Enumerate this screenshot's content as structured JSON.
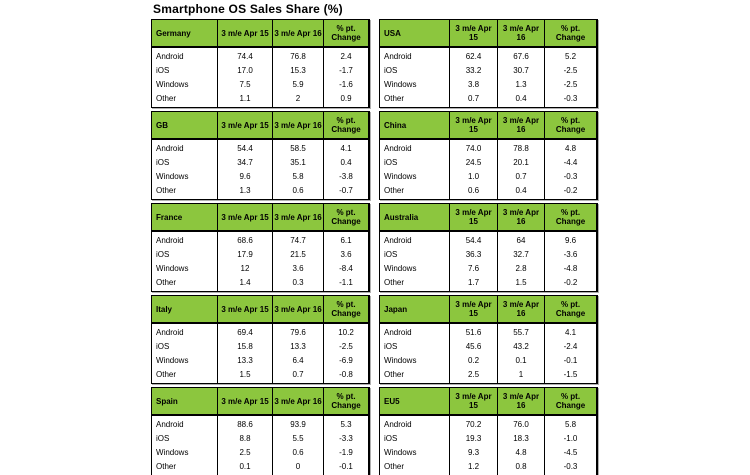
{
  "title": "Smartphone OS Sales Share (%)",
  "colors": {
    "header_green": "#8CC63E",
    "border": "#000000",
    "background": "#ffffff"
  },
  "column_headers": {
    "left": [
      "3 m/e Apr 15",
      "3 m/e Apr 16",
      "% pt.\nChange"
    ],
    "right": [
      "3 m/e Apr\n15",
      "3 m/e Apr\n16",
      "% pt.\nChange"
    ]
  },
  "chart_data": {
    "type": "table",
    "title": "Smartphone OS Sales Share (%)",
    "os_rows": [
      "Android",
      "iOS",
      "Windows",
      "Other"
    ],
    "column_labels": [
      "3 m/e Apr 15",
      "3 m/e Apr 16",
      "% pt. Change"
    ],
    "tables": {
      "left": [
        {
          "country": "Germany",
          "values": [
            [
              "74.4",
              "76.8",
              "2.4"
            ],
            [
              "17.0",
              "15.3",
              "-1.7"
            ],
            [
              "7.5",
              "5.9",
              "-1.6"
            ],
            [
              "1.1",
              "2",
              "0.9"
            ]
          ]
        },
        {
          "country": "GB",
          "values": [
            [
              "54.4",
              "58.5",
              "4.1"
            ],
            [
              "34.7",
              "35.1",
              "0.4"
            ],
            [
              "9.6",
              "5.8",
              "-3.8"
            ],
            [
              "1.3",
              "0.6",
              "-0.7"
            ]
          ]
        },
        {
          "country": "France",
          "values": [
            [
              "68.6",
              "74.7",
              "6.1"
            ],
            [
              "17.9",
              "21.5",
              "3.6"
            ],
            [
              "12",
              "3.6",
              "-8.4"
            ],
            [
              "1.4",
              "0.3",
              "-1.1"
            ]
          ]
        },
        {
          "country": "Italy",
          "values": [
            [
              "69.4",
              "79.6",
              "10.2"
            ],
            [
              "15.8",
              "13.3",
              "-2.5"
            ],
            [
              "13.3",
              "6.4",
              "-6.9"
            ],
            [
              "1.5",
              "0.7",
              "-0.8"
            ]
          ]
        },
        {
          "country": "Spain",
          "values": [
            [
              "88.6",
              "93.9",
              "5.3"
            ],
            [
              "8.8",
              "5.5",
              "-3.3"
            ],
            [
              "2.5",
              "0.6",
              "-1.9"
            ],
            [
              "0.1",
              "0",
              "-0.1"
            ]
          ]
        }
      ],
      "right": [
        {
          "country": "USA",
          "values": [
            [
              "62.4",
              "67.6",
              "5.2"
            ],
            [
              "33.2",
              "30.7",
              "-2.5"
            ],
            [
              "3.8",
              "1.3",
              "-2.5"
            ],
            [
              "0.7",
              "0.4",
              "-0.3"
            ]
          ]
        },
        {
          "country": "China",
          "values": [
            [
              "74.0",
              "78.8",
              "4.8"
            ],
            [
              "24.5",
              "20.1",
              "-4.4"
            ],
            [
              "1.0",
              "0.7",
              "-0.3"
            ],
            [
              "0.6",
              "0.4",
              "-0.2"
            ]
          ]
        },
        {
          "country": "Australia",
          "values": [
            [
              "54.4",
              "64",
              "9.6"
            ],
            [
              "36.3",
              "32.7",
              "-3.6"
            ],
            [
              "7.6",
              "2.8",
              "-4.8"
            ],
            [
              "1.7",
              "1.5",
              "-0.2"
            ]
          ]
        },
        {
          "country": "Japan",
          "values": [
            [
              "51.6",
              "55.7",
              "4.1"
            ],
            [
              "45.6",
              "43.2",
              "-2.4"
            ],
            [
              "0.2",
              "0.1",
              "-0.1"
            ],
            [
              "2.5",
              "1",
              "-1.5"
            ]
          ]
        },
        {
          "country": "EU5",
          "values": [
            [
              "70.2",
              "76.0",
              "5.8"
            ],
            [
              "19.3",
              "18.3",
              "-1.0"
            ],
            [
              "9.3",
              "4.8",
              "-4.5"
            ],
            [
              "1.2",
              "0.8",
              "-0.3"
            ]
          ]
        }
      ]
    }
  }
}
